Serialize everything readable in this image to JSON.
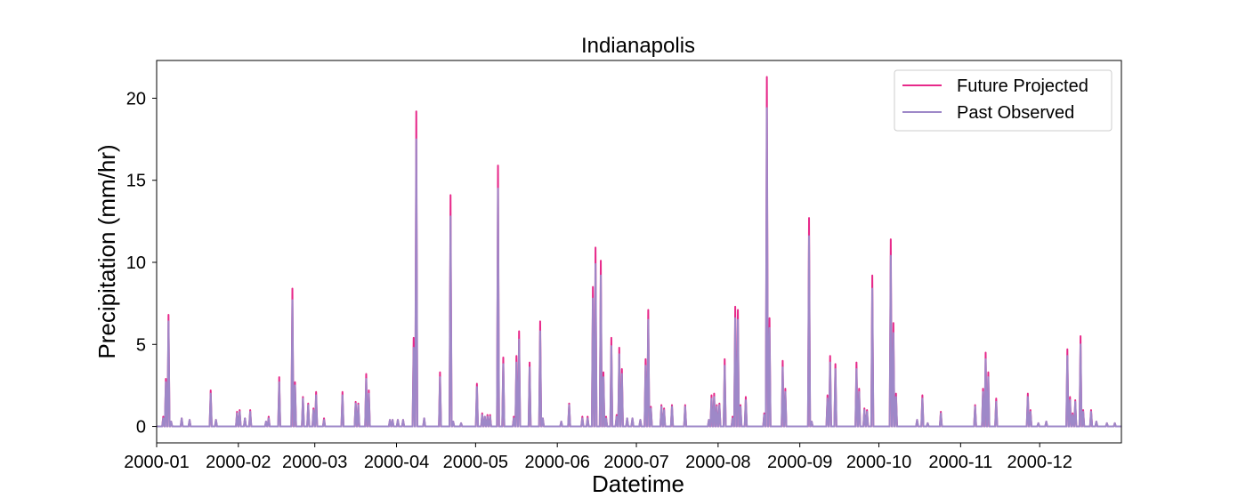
{
  "chart_data": {
    "type": "line",
    "title": "Indianapolis",
    "xlabel": "Datetime",
    "ylabel": "Precipitation (mm/hr)",
    "xlim": [
      "2000-01-01",
      "2000-12-31"
    ],
    "ylim": [
      -1,
      22.3
    ],
    "x_tick_labels": [
      "2000-01",
      "2000-02",
      "2000-03",
      "2000-04",
      "2000-05",
      "2000-06",
      "2000-07",
      "2000-08",
      "2000-09",
      "2000-10",
      "2000-11",
      "2000-12"
    ],
    "y_tick_values": [
      0,
      5,
      10,
      15,
      20
    ],
    "y_tick_labels": [
      "0",
      "5",
      "10",
      "15",
      "20"
    ],
    "grid": false,
    "legend_position": "top-right",
    "series": [
      {
        "name": "Future Projected",
        "color": "#e7298a",
        "peaks": [
          [
            "2000-01-03",
            0.6
          ],
          [
            "2000-01-04",
            2.9
          ],
          [
            "2000-01-05",
            6.8
          ],
          [
            "2000-01-06",
            0.3
          ],
          [
            "2000-01-10",
            0.5
          ],
          [
            "2000-01-13",
            0.4
          ],
          [
            "2000-01-21",
            2.2
          ],
          [
            "2000-01-23",
            0.4
          ],
          [
            "2000-01-31",
            0.9
          ],
          [
            "2000-02-01",
            1.0
          ],
          [
            "2000-02-03",
            0.5
          ],
          [
            "2000-02-05",
            1.0
          ],
          [
            "2000-02-11",
            0.3
          ],
          [
            "2000-02-12",
            0.6
          ],
          [
            "2000-02-16",
            3.0
          ],
          [
            "2000-02-21",
            8.4
          ],
          [
            "2000-02-22",
            2.7
          ],
          [
            "2000-02-25",
            1.8
          ],
          [
            "2000-02-27",
            1.4
          ],
          [
            "2000-02-29",
            1.1
          ],
          [
            "2000-03-01",
            2.1
          ],
          [
            "2000-03-04",
            0.5
          ],
          [
            "2000-03-11",
            2.1
          ],
          [
            "2000-03-16",
            1.5
          ],
          [
            "2000-03-17",
            1.4
          ],
          [
            "2000-03-20",
            3.2
          ],
          [
            "2000-03-21",
            2.2
          ],
          [
            "2000-03-29",
            0.4
          ],
          [
            "2000-03-30",
            0.4
          ],
          [
            "2000-04-01",
            0.4
          ],
          [
            "2000-04-03",
            0.4
          ],
          [
            "2000-04-07",
            5.4
          ],
          [
            "2000-04-08",
            19.2
          ],
          [
            "2000-04-11",
            0.5
          ],
          [
            "2000-04-17",
            3.3
          ],
          [
            "2000-04-21",
            14.1
          ],
          [
            "2000-04-22",
            0.3
          ],
          [
            "2000-04-25",
            0.2
          ],
          [
            "2000-05-01",
            2.6
          ],
          [
            "2000-05-03",
            0.8
          ],
          [
            "2000-05-04",
            0.6
          ],
          [
            "2000-05-05",
            0.7
          ],
          [
            "2000-05-06",
            0.7
          ],
          [
            "2000-05-09",
            15.9
          ],
          [
            "2000-05-11",
            4.2
          ],
          [
            "2000-05-15",
            0.6
          ],
          [
            "2000-05-16",
            4.3
          ],
          [
            "2000-05-17",
            5.8
          ],
          [
            "2000-05-21",
            3.9
          ],
          [
            "2000-05-25",
            6.4
          ],
          [
            "2000-05-26",
            0.5
          ],
          [
            "2000-06-02",
            0.3
          ],
          [
            "2000-06-05",
            1.4
          ],
          [
            "2000-06-10",
            0.6
          ],
          [
            "2000-06-12",
            0.6
          ],
          [
            "2000-06-14",
            8.5
          ],
          [
            "2000-06-15",
            10.9
          ],
          [
            "2000-06-17",
            10.1
          ],
          [
            "2000-06-18",
            3.3
          ],
          [
            "2000-06-19",
            0.6
          ],
          [
            "2000-06-21",
            5.4
          ],
          [
            "2000-06-23",
            0.7
          ],
          [
            "2000-06-24",
            4.8
          ],
          [
            "2000-06-25",
            3.5
          ],
          [
            "2000-06-27",
            0.5
          ],
          [
            "2000-06-29",
            0.5
          ],
          [
            "2000-07-02",
            0.4
          ],
          [
            "2000-07-04",
            4.1
          ],
          [
            "2000-07-05",
            7.1
          ],
          [
            "2000-07-06",
            1.2
          ],
          [
            "2000-07-10",
            1.3
          ],
          [
            "2000-07-11",
            1.1
          ],
          [
            "2000-07-14",
            1.3
          ],
          [
            "2000-07-19",
            1.3
          ],
          [
            "2000-07-28",
            0.4
          ],
          [
            "2000-07-29",
            1.9
          ],
          [
            "2000-07-30",
            2.0
          ],
          [
            "2000-07-31",
            1.3
          ],
          [
            "2000-08-01",
            1.4
          ],
          [
            "2000-08-03",
            4.1
          ],
          [
            "2000-08-06",
            0.6
          ],
          [
            "2000-08-07",
            7.3
          ],
          [
            "2000-08-08",
            7.1
          ],
          [
            "2000-08-09",
            1.3
          ],
          [
            "2000-08-11",
            1.8
          ],
          [
            "2000-08-18",
            0.8
          ],
          [
            "2000-08-19",
            21.3
          ],
          [
            "2000-08-20",
            6.6
          ],
          [
            "2000-08-25",
            4.0
          ],
          [
            "2000-08-26",
            2.3
          ],
          [
            "2000-09-04",
            12.7
          ],
          [
            "2000-09-05",
            0.3
          ],
          [
            "2000-09-11",
            1.9
          ],
          [
            "2000-09-12",
            4.3
          ],
          [
            "2000-09-14",
            3.8
          ],
          [
            "2000-09-22",
            3.9
          ],
          [
            "2000-09-23",
            2.3
          ],
          [
            "2000-09-25",
            1.1
          ],
          [
            "2000-09-26",
            1.0
          ],
          [
            "2000-09-28",
            9.2
          ],
          [
            "2000-10-05",
            11.4
          ],
          [
            "2000-10-06",
            6.3
          ],
          [
            "2000-10-07",
            2.0
          ],
          [
            "2000-10-15",
            0.4
          ],
          [
            "2000-10-17",
            1.9
          ],
          [
            "2000-10-19",
            0.2
          ],
          [
            "2000-10-24",
            0.9
          ],
          [
            "2000-11-06",
            1.3
          ],
          [
            "2000-11-09",
            2.3
          ],
          [
            "2000-11-10",
            4.5
          ],
          [
            "2000-11-11",
            3.3
          ],
          [
            "2000-11-14",
            1.7
          ],
          [
            "2000-11-26",
            2.0
          ],
          [
            "2000-11-27",
            1.0
          ],
          [
            "2000-11-30",
            0.2
          ],
          [
            "2000-12-03",
            0.3
          ],
          [
            "2000-12-11",
            4.7
          ],
          [
            "2000-12-12",
            1.8
          ],
          [
            "2000-12-13",
            0.8
          ],
          [
            "2000-12-14",
            1.6
          ],
          [
            "2000-12-16",
            5.5
          ],
          [
            "2000-12-17",
            1.0
          ],
          [
            "2000-12-20",
            1.0
          ],
          [
            "2000-12-22",
            0.3
          ],
          [
            "2000-12-26",
            0.2
          ],
          [
            "2000-12-29",
            0.2
          ]
        ]
      },
      {
        "name": "Past Observed",
        "color": "#9e88c8",
        "peaks": [
          [
            "2000-01-03",
            0.5
          ],
          [
            "2000-01-04",
            2.7
          ],
          [
            "2000-01-05",
            6.4
          ],
          [
            "2000-01-06",
            0.3
          ],
          [
            "2000-01-10",
            0.5
          ],
          [
            "2000-01-13",
            0.4
          ],
          [
            "2000-01-21",
            2.0
          ],
          [
            "2000-01-23",
            0.4
          ],
          [
            "2000-01-31",
            0.8
          ],
          [
            "2000-02-01",
            0.9
          ],
          [
            "2000-02-03",
            0.5
          ],
          [
            "2000-02-05",
            0.9
          ],
          [
            "2000-02-11",
            0.3
          ],
          [
            "2000-02-12",
            0.5
          ],
          [
            "2000-02-16",
            2.7
          ],
          [
            "2000-02-21",
            7.7
          ],
          [
            "2000-02-22",
            2.5
          ],
          [
            "2000-02-25",
            1.7
          ],
          [
            "2000-02-27",
            1.3
          ],
          [
            "2000-02-29",
            1.0
          ],
          [
            "2000-03-01",
            1.9
          ],
          [
            "2000-03-04",
            0.4
          ],
          [
            "2000-03-11",
            1.9
          ],
          [
            "2000-03-16",
            1.4
          ],
          [
            "2000-03-17",
            1.3
          ],
          [
            "2000-03-20",
            2.9
          ],
          [
            "2000-03-21",
            2.0
          ],
          [
            "2000-03-29",
            0.4
          ],
          [
            "2000-03-30",
            0.4
          ],
          [
            "2000-04-01",
            0.4
          ],
          [
            "2000-04-03",
            0.4
          ],
          [
            "2000-04-07",
            4.8
          ],
          [
            "2000-04-08",
            17.5
          ],
          [
            "2000-04-11",
            0.5
          ],
          [
            "2000-04-17",
            3.0
          ],
          [
            "2000-04-21",
            12.8
          ],
          [
            "2000-04-22",
            0.3
          ],
          [
            "2000-04-25",
            0.2
          ],
          [
            "2000-05-01",
            2.4
          ],
          [
            "2000-05-03",
            0.7
          ],
          [
            "2000-05-04",
            0.6
          ],
          [
            "2000-05-05",
            0.6
          ],
          [
            "2000-05-06",
            0.6
          ],
          [
            "2000-05-09",
            14.5
          ],
          [
            "2000-05-11",
            3.8
          ],
          [
            "2000-05-15",
            0.5
          ],
          [
            "2000-05-16",
            3.9
          ],
          [
            "2000-05-17",
            5.3
          ],
          [
            "2000-05-21",
            3.6
          ],
          [
            "2000-05-25",
            5.8
          ],
          [
            "2000-05-26",
            0.5
          ],
          [
            "2000-06-02",
            0.3
          ],
          [
            "2000-06-05",
            1.3
          ],
          [
            "2000-06-10",
            0.5
          ],
          [
            "2000-06-12",
            0.5
          ],
          [
            "2000-06-14",
            7.8
          ],
          [
            "2000-06-15",
            9.9
          ],
          [
            "2000-06-17",
            9.2
          ],
          [
            "2000-06-18",
            3.0
          ],
          [
            "2000-06-19",
            0.5
          ],
          [
            "2000-06-21",
            4.9
          ],
          [
            "2000-06-23",
            0.6
          ],
          [
            "2000-06-24",
            4.4
          ],
          [
            "2000-06-25",
            3.2
          ],
          [
            "2000-06-27",
            0.5
          ],
          [
            "2000-06-29",
            0.5
          ],
          [
            "2000-07-02",
            0.4
          ],
          [
            "2000-07-04",
            3.7
          ],
          [
            "2000-07-05",
            6.5
          ],
          [
            "2000-07-06",
            1.1
          ],
          [
            "2000-07-10",
            1.2
          ],
          [
            "2000-07-11",
            1.0
          ],
          [
            "2000-07-14",
            1.2
          ],
          [
            "2000-07-19",
            1.2
          ],
          [
            "2000-07-28",
            0.4
          ],
          [
            "2000-07-29",
            1.7
          ],
          [
            "2000-07-30",
            1.8
          ],
          [
            "2000-07-31",
            1.2
          ],
          [
            "2000-08-01",
            1.3
          ],
          [
            "2000-08-03",
            3.7
          ],
          [
            "2000-08-06",
            0.5
          ],
          [
            "2000-08-07",
            6.6
          ],
          [
            "2000-08-08",
            6.5
          ],
          [
            "2000-08-09",
            1.2
          ],
          [
            "2000-08-11",
            1.6
          ],
          [
            "2000-08-18",
            0.7
          ],
          [
            "2000-08-19",
            19.4
          ],
          [
            "2000-08-20",
            6.0
          ],
          [
            "2000-08-25",
            3.6
          ],
          [
            "2000-08-26",
            2.1
          ],
          [
            "2000-09-04",
            11.6
          ],
          [
            "2000-09-05",
            0.3
          ],
          [
            "2000-09-11",
            1.7
          ],
          [
            "2000-09-12",
            3.9
          ],
          [
            "2000-09-14",
            3.5
          ],
          [
            "2000-09-22",
            3.5
          ],
          [
            "2000-09-23",
            2.1
          ],
          [
            "2000-09-25",
            1.0
          ],
          [
            "2000-09-26",
            0.9
          ],
          [
            "2000-09-28",
            8.4
          ],
          [
            "2000-10-05",
            10.4
          ],
          [
            "2000-10-06",
            5.7
          ],
          [
            "2000-10-07",
            1.8
          ],
          [
            "2000-10-15",
            0.4
          ],
          [
            "2000-10-17",
            1.7
          ],
          [
            "2000-10-19",
            0.2
          ],
          [
            "2000-10-24",
            0.8
          ],
          [
            "2000-11-06",
            1.2
          ],
          [
            "2000-11-09",
            2.1
          ],
          [
            "2000-11-10",
            4.1
          ],
          [
            "2000-11-11",
            3.0
          ],
          [
            "2000-11-14",
            1.5
          ],
          [
            "2000-11-26",
            1.8
          ],
          [
            "2000-11-27",
            0.9
          ],
          [
            "2000-11-30",
            0.2
          ],
          [
            "2000-12-03",
            0.3
          ],
          [
            "2000-12-11",
            4.3
          ],
          [
            "2000-12-12",
            1.6
          ],
          [
            "2000-12-13",
            0.7
          ],
          [
            "2000-12-14",
            1.5
          ],
          [
            "2000-12-16",
            5.0
          ],
          [
            "2000-12-17",
            0.9
          ],
          [
            "2000-12-20",
            0.9
          ],
          [
            "2000-12-22",
            0.3
          ],
          [
            "2000-12-26",
            0.2
          ],
          [
            "2000-12-29",
            0.2
          ]
        ]
      }
    ]
  }
}
